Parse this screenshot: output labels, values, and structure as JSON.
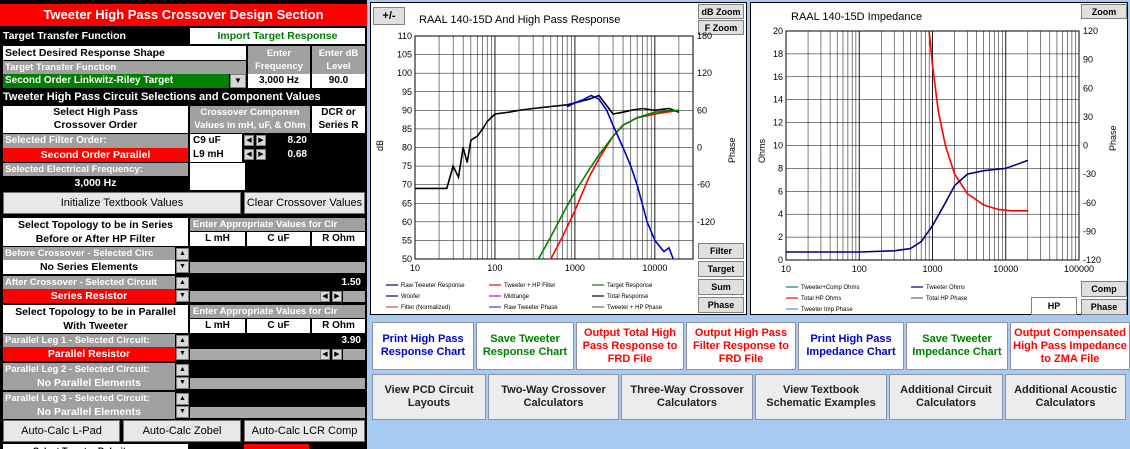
{
  "left": {
    "title": "Tweeter High Pass Crossover Design Section",
    "target_transfer_label": "Target Transfer Function",
    "import_target_btn": "Import Target Response",
    "select_shape_label": "Select Desired Response Shape",
    "enter_freq_label": "Enter Frequency",
    "enter_db_label": "Enter dB Level",
    "target_transfer_fn_label": "Target Transfer Function",
    "target_value": "Second Order Linkwitz-Riley Target",
    "freq_value": "3,000 Hz",
    "db_value": "90.0",
    "circuit_sel_header": "Tweeter High Pass Circuit Selections and Component Values",
    "select_hp_label_1": "Select High Pass",
    "select_hp_label_2": "Crossover Order",
    "crossover_comp_1": "Crossover Componen",
    "crossover_comp_2": "Values in mH, uF, & Ohm",
    "dcr_1": "DCR or",
    "dcr_2": "Series R",
    "sel_filter_order_label": "Selected Filter Order:",
    "filter_order_value": "Second Order Parallel",
    "c9_label": "C9  uF",
    "c9_value": "8.20",
    "l9_label": "L9 mH",
    "l9_value": "0.68",
    "sel_elec_freq_label": "Selected Electrical Frequency:",
    "elec_freq_value": "3,000 Hz",
    "init_textbook_btn": "Initialize Textbook Values",
    "clear_crossover_btn": "Clear Crossover Values",
    "series_topology_1": "Select Topology to be in Series",
    "series_topology_2": "Before or After HP Filter",
    "enter_values_series": "Enter Appropriate Values for Cir",
    "col_l": "L mH",
    "col_c": "C uF",
    "col_r": "R Ohm",
    "before_crossover_label": "Before Crossover - Selected Circ",
    "before_crossover_value": "No Series Elements",
    "after_crossover_label": "After Crossover - Selected Circuit",
    "after_crossover_value": "Series Resistor",
    "after_r_value": "1.50",
    "parallel_topology_1": "Select Topology to be in Parallel",
    "parallel_topology_2": "With Tweeter",
    "enter_values_parallel": "Enter Appropriate Values for Cir",
    "leg1_label": "Parallel Leg 1 - Selected Circuit:",
    "leg1_value": "Parallel Resistor",
    "leg1_r_value": "3.90",
    "leg2_label": "Parallel Leg 2 - Selected Circuit:",
    "leg2_value": "No Parallel Elements",
    "leg3_label": "Parallel Leg 3 - Selected Circuit:",
    "leg3_value": "No Parallel Elements",
    "autocalc_lpad": "Auto-Calc L-Pad",
    "autocalc_zobel": "Auto-Calc Zobel",
    "autocalc_lcr": "Auto-Calc LCR Comp",
    "bottom_cut_text": "Select Tweeter Polarity"
  },
  "chart1": {
    "plusminus_btn": "+/-",
    "title": "RAAL 140-15D  And High Pass Response",
    "db_zoom": "dB Zoom",
    "f_zoom": "F Zoom",
    "ylabel_left": "dB",
    "ylabel_right": "Phase",
    "filter_btn": "Filter",
    "target_btn": "Target",
    "sum_btn": "Sum",
    "phase_btn": "Phase",
    "legend": [
      "Raw Tweeter Response",
      "Tweeter + HP Filter",
      "Target Response",
      "Woofer",
      "Midrange",
      "Total Response",
      "Filter (Normalized)",
      "Raw Tweeter Phase",
      "Tweeter + HP Phase"
    ]
  },
  "chart2": {
    "title": "RAAL 140-15D  Impedance",
    "zoom_btn": "Zoom",
    "ylabel_left": "Ohms",
    "ylabel_right": "Phase",
    "comp_btn": "Comp",
    "phase_btn": "Phase",
    "hp_btn": "HP",
    "legend": [
      "Tweeter+Comp Ohms",
      "Tweeter Ohms",
      "Total HP Ohms",
      "Total HP Phase",
      "Tweeter Imp Phase"
    ]
  },
  "chart_data": [
    {
      "type": "line",
      "title": "RAAL 140-15D  And High Pass Response",
      "xlabel": "",
      "ylabel": "dB",
      "x_scale": "log",
      "xlim": [
        10,
        30000
      ],
      "ylim": [
        50,
        110
      ],
      "y2lim": [
        -180,
        180
      ],
      "x_ticks": [
        "10",
        "100",
        "1000",
        "10000"
      ],
      "y_ticks": [
        50,
        55,
        60,
        65,
        70,
        75,
        80,
        85,
        90,
        95,
        100,
        105,
        110
      ],
      "y2_ticks": [
        -120,
        -60,
        0,
        60,
        120,
        180
      ],
      "series": [
        {
          "name": "Raw Tweeter Response",
          "color": "#000000",
          "x": [
            10,
            20,
            25,
            30,
            35,
            40,
            45,
            50,
            60,
            70,
            80,
            100,
            150,
            200,
            300,
            500,
            800,
            1000,
            1500,
            2000,
            3000,
            4000,
            5000,
            7000,
            10000,
            15000,
            20000
          ],
          "y": [
            69,
            69,
            69,
            75,
            72,
            80,
            76,
            82,
            83,
            85,
            87,
            89,
            89.5,
            90,
            90.5,
            91,
            91.5,
            92,
            93,
            94,
            89,
            89.5,
            90,
            90.5,
            90,
            90.5,
            89.5
          ]
        },
        {
          "name": "Tweeter + HP Filter",
          "color": "#ff0000",
          "x": [
            500,
            700,
            1000,
            1500,
            2000,
            3000,
            4000,
            6000,
            10000,
            20000
          ],
          "y": [
            50,
            56,
            63,
            72,
            77,
            83,
            86,
            88,
            89,
            90
          ]
        },
        {
          "name": "Target Response",
          "color": "#008000",
          "x": [
            350,
            500,
            700,
            1000,
            1500,
            2000,
            3000,
            4000,
            6000,
            10000,
            20000
          ],
          "y": [
            50,
            56,
            62,
            68,
            74,
            78,
            83,
            86,
            88,
            89.5,
            90
          ]
        },
        {
          "name": "Total Response",
          "color": "#0000cc",
          "x": [
            800,
            1000,
            1300,
            1600,
            2000,
            2500,
            3000,
            4000,
            5000,
            6000,
            8000,
            10000,
            13000,
            15000,
            17000
          ],
          "y": [
            91,
            92,
            93,
            94,
            93,
            90,
            86,
            80,
            75,
            70,
            60,
            55,
            52,
            53,
            50
          ]
        }
      ]
    },
    {
      "type": "line",
      "title": "RAAL 140-15D  Impedance",
      "xlabel": "",
      "ylabel": "Ohms",
      "x_scale": "log",
      "xlim": [
        10,
        100000
      ],
      "ylim": [
        0,
        20
      ],
      "y2lim": [
        -120,
        120
      ],
      "x_ticks": [
        "10",
        "100",
        "1000",
        "10000",
        "100000"
      ],
      "y_ticks": [
        0,
        2,
        4,
        6,
        8,
        10,
        12,
        14,
        16,
        18,
        20
      ],
      "y2_ticks": [
        -120,
        -90,
        -60,
        -30,
        0,
        30,
        60,
        90,
        120
      ],
      "series": [
        {
          "name": "Total HP Ohms",
          "color": "#ff0000",
          "x": [
            900,
            1000,
            1200,
            1500,
            2000,
            3000,
            5000,
            8000,
            12000,
            20000
          ],
          "y": [
            20,
            17,
            13,
            10,
            7.5,
            5.8,
            4.8,
            4.4,
            4.3,
            4.3
          ]
        },
        {
          "name": "Tweeter Ohms",
          "color": "#000080",
          "x": [
            10,
            100,
            300,
            500,
            700,
            1000,
            1500,
            2000,
            3000,
            5000,
            10000,
            20000
          ],
          "y": [
            0.7,
            0.7,
            0.8,
            1.0,
            1.6,
            3.0,
            5.0,
            6.5,
            7.5,
            7.8,
            8.0,
            8.7
          ]
        }
      ]
    }
  ],
  "bottom_buttons_row1": [
    {
      "label": "Print High Pass Response Chart",
      "color": "#0000cc"
    },
    {
      "label": "Save Tweeter Response Chart",
      "color": "#008000"
    },
    {
      "label": "Output Total High Pass Response to FRD File",
      "color": "#ff0000"
    },
    {
      "label": "Output High Pass Filter Response to FRD File",
      "color": "#ff0000"
    },
    {
      "label": "Print High Pass Impedance Chart",
      "color": "#0000cc"
    },
    {
      "label": "Save Tweeter Impedance Chart",
      "color": "#008000"
    },
    {
      "label": "Output Compensated High Pass Impedance to ZMA File",
      "color": "#ff0000"
    }
  ],
  "bottom_buttons_row2": [
    {
      "label": "View PCD Circuit Layouts"
    },
    {
      "label": "Two-Way Crossover Calculators"
    },
    {
      "label": "Three-Way Crossover Calculators"
    },
    {
      "label": "View Textbook Schematic Examples"
    },
    {
      "label": "Additional Circuit Calculators"
    },
    {
      "label": "Additional Acoustic Calculators"
    }
  ]
}
